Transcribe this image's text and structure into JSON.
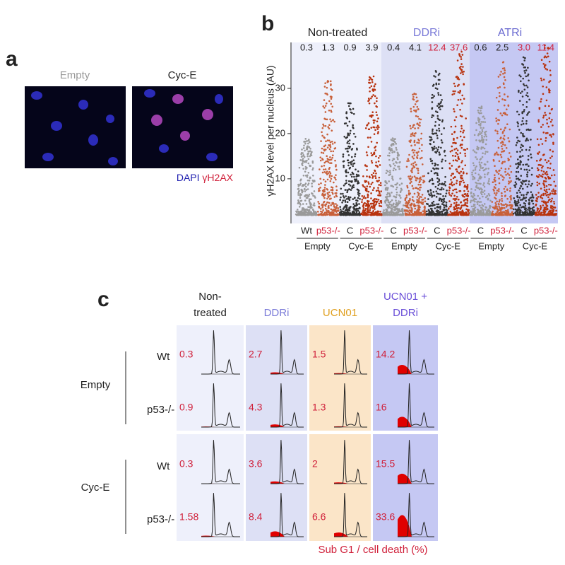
{
  "panel_a": {
    "label": "a",
    "titles": [
      "Empty",
      "Cyc-E"
    ],
    "legend": [
      "DAPI",
      "γH2AX"
    ]
  },
  "chart_data": {
    "type": "dot",
    "label": "b",
    "ylabel": "γH2AX level per nucleus (AU)",
    "ylim": [
      2,
      40
    ],
    "yticks": [
      10,
      20,
      30
    ],
    "groups": [
      "Non-treated",
      "DDRi",
      "ATRi"
    ],
    "categories": [
      "Wt",
      "p53-/-",
      "C",
      "p53-/-",
      "C",
      "p53-/-",
      "C",
      "p53-/-",
      "C",
      "p53-/-",
      "C",
      "p53-/-"
    ],
    "subgroups": [
      "Empty",
      "Cyc-E",
      "Empty",
      "Cyc-E",
      "Empty",
      "Cyc-E"
    ],
    "top_labels": [
      "0.3",
      "1.3",
      "0.9",
      "3.9",
      "0.4",
      "4.1",
      "12.4",
      "37.6",
      "0.6",
      "2.5",
      "3.0",
      "11.4"
    ],
    "values": [
      19,
      32,
      27,
      33,
      19,
      29,
      34,
      40,
      26,
      36,
      37,
      40
    ],
    "colors": [
      "#9a9a9a",
      "#c8603a",
      "#333333",
      "#b8330f",
      "#9a9a9a",
      "#c8603a",
      "#333333",
      "#b8330f",
      "#9a9a9a",
      "#c8603a",
      "#333333",
      "#b8330f"
    ]
  },
  "panel_c": {
    "label": "c",
    "columns": [
      [
        "Non-",
        "treated"
      ],
      [
        "DDRi"
      ],
      [
        "UCN01"
      ],
      [
        "UCN01 +",
        "DDRi"
      ]
    ],
    "groups": [
      "Empty",
      "Cyc-E"
    ],
    "rows": [
      "Wt",
      "p53-/-",
      "Wt",
      "p53-/-"
    ],
    "values": [
      [
        0.3,
        2.7,
        1.5,
        14.2
      ],
      [
        0.9,
        4.3,
        1.3,
        16
      ],
      [
        0.3,
        3.6,
        2,
        15.5
      ],
      [
        1.58,
        8.4,
        6.6,
        33.6
      ]
    ],
    "footer": "Sub G1 / cell death (%)"
  }
}
